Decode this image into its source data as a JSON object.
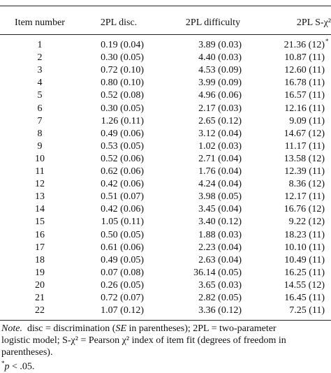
{
  "table": {
    "columns": [
      "Item number",
      "2PL disc.",
      "2PL difficulty",
      "2PL S-χ²"
    ],
    "rows": [
      [
        "1",
        "0.19 (0.04)",
        "3.89 (0.03)",
        "21.36 (12)"
      ],
      [
        "2",
        "0.30 (0.05)",
        "4.40 (0.03)",
        "10.87 (11)"
      ],
      [
        "3",
        "0.72 (0.10)",
        "4.53 (0.09)",
        "12.60 (11)"
      ],
      [
        "4",
        "0.80 (0.10)",
        "3.99 (0.09)",
        "16.78 (11)"
      ],
      [
        "5",
        "0.52 (0.08)",
        "4.96 (0.06)",
        "16.57 (11)"
      ],
      [
        "6",
        "0.30 (0.05)",
        "2.17 (0.03)",
        "12.16 (11)"
      ],
      [
        "7",
        "1.26 (0.11)",
        "2.65 (0.12)",
        "9.09 (11)"
      ],
      [
        "8",
        "0.49 (0.06)",
        "3.12 (0.04)",
        "14.67 (12)"
      ],
      [
        "9",
        "0.53 (0.05)",
        "1.02 (0.03)",
        "11.17 (11)"
      ],
      [
        "10",
        "0.52 (0.06)",
        "2.71 (0.04)",
        "13.58 (12)"
      ],
      [
        "11",
        "0.62 (0.06)",
        "1.76 (0.04)",
        "12.39 (11)"
      ],
      [
        "12",
        "0.42 (0.06)",
        "4.24 (0.04)",
        "8.36 (12)"
      ],
      [
        "13",
        "0.51 (0.07)",
        "3.98 (0.05)",
        "12.17 (11)"
      ],
      [
        "14",
        "0.42 (0.06)",
        "3.45 (0.04)",
        "16.76 (12)"
      ],
      [
        "15",
        "1.05 (0.11)",
        "3.40 (0.12)",
        "9.22 (12)"
      ],
      [
        "16",
        "0.50 (0.05)",
        "1.88 (0.03)",
        "18.23 (11)"
      ],
      [
        "17",
        "0.61 (0.06)",
        "2.23 (0.04)",
        "10.10 (11)"
      ],
      [
        "18",
        "0.49 (0.05)",
        "2.63 (0.04)",
        "10.49 (11)"
      ],
      [
        "19",
        "0.07 (0.08)",
        "36.14 (0.05)",
        "16.25 (11)"
      ],
      [
        "20",
        "0.26 (0.05)",
        "3.65 (0.03)",
        "14.55 (12)"
      ],
      [
        "21",
        "0.72 (0.07)",
        "2.82 (0.05)",
        "16.45 (11)"
      ],
      [
        "22",
        "1.07 (0.12)",
        "3.36 (0.12)",
        "7.25 (11)"
      ]
    ],
    "row_marks": {
      "0": "*"
    }
  },
  "note": {
    "label": "Note.",
    "lines": [
      [
        "  disc = discrimination (",
        "SE",
        " in parentheses); 2PL = two-parameter"
      ],
      [
        "logistic model; S-χ² = Pearson χ² index of item fit (degrees of freedom in"
      ],
      [
        "parentheses)."
      ]
    ],
    "footnote_mark": "*",
    "footnote_p": "p",
    "footnote_text": " < .05."
  }
}
